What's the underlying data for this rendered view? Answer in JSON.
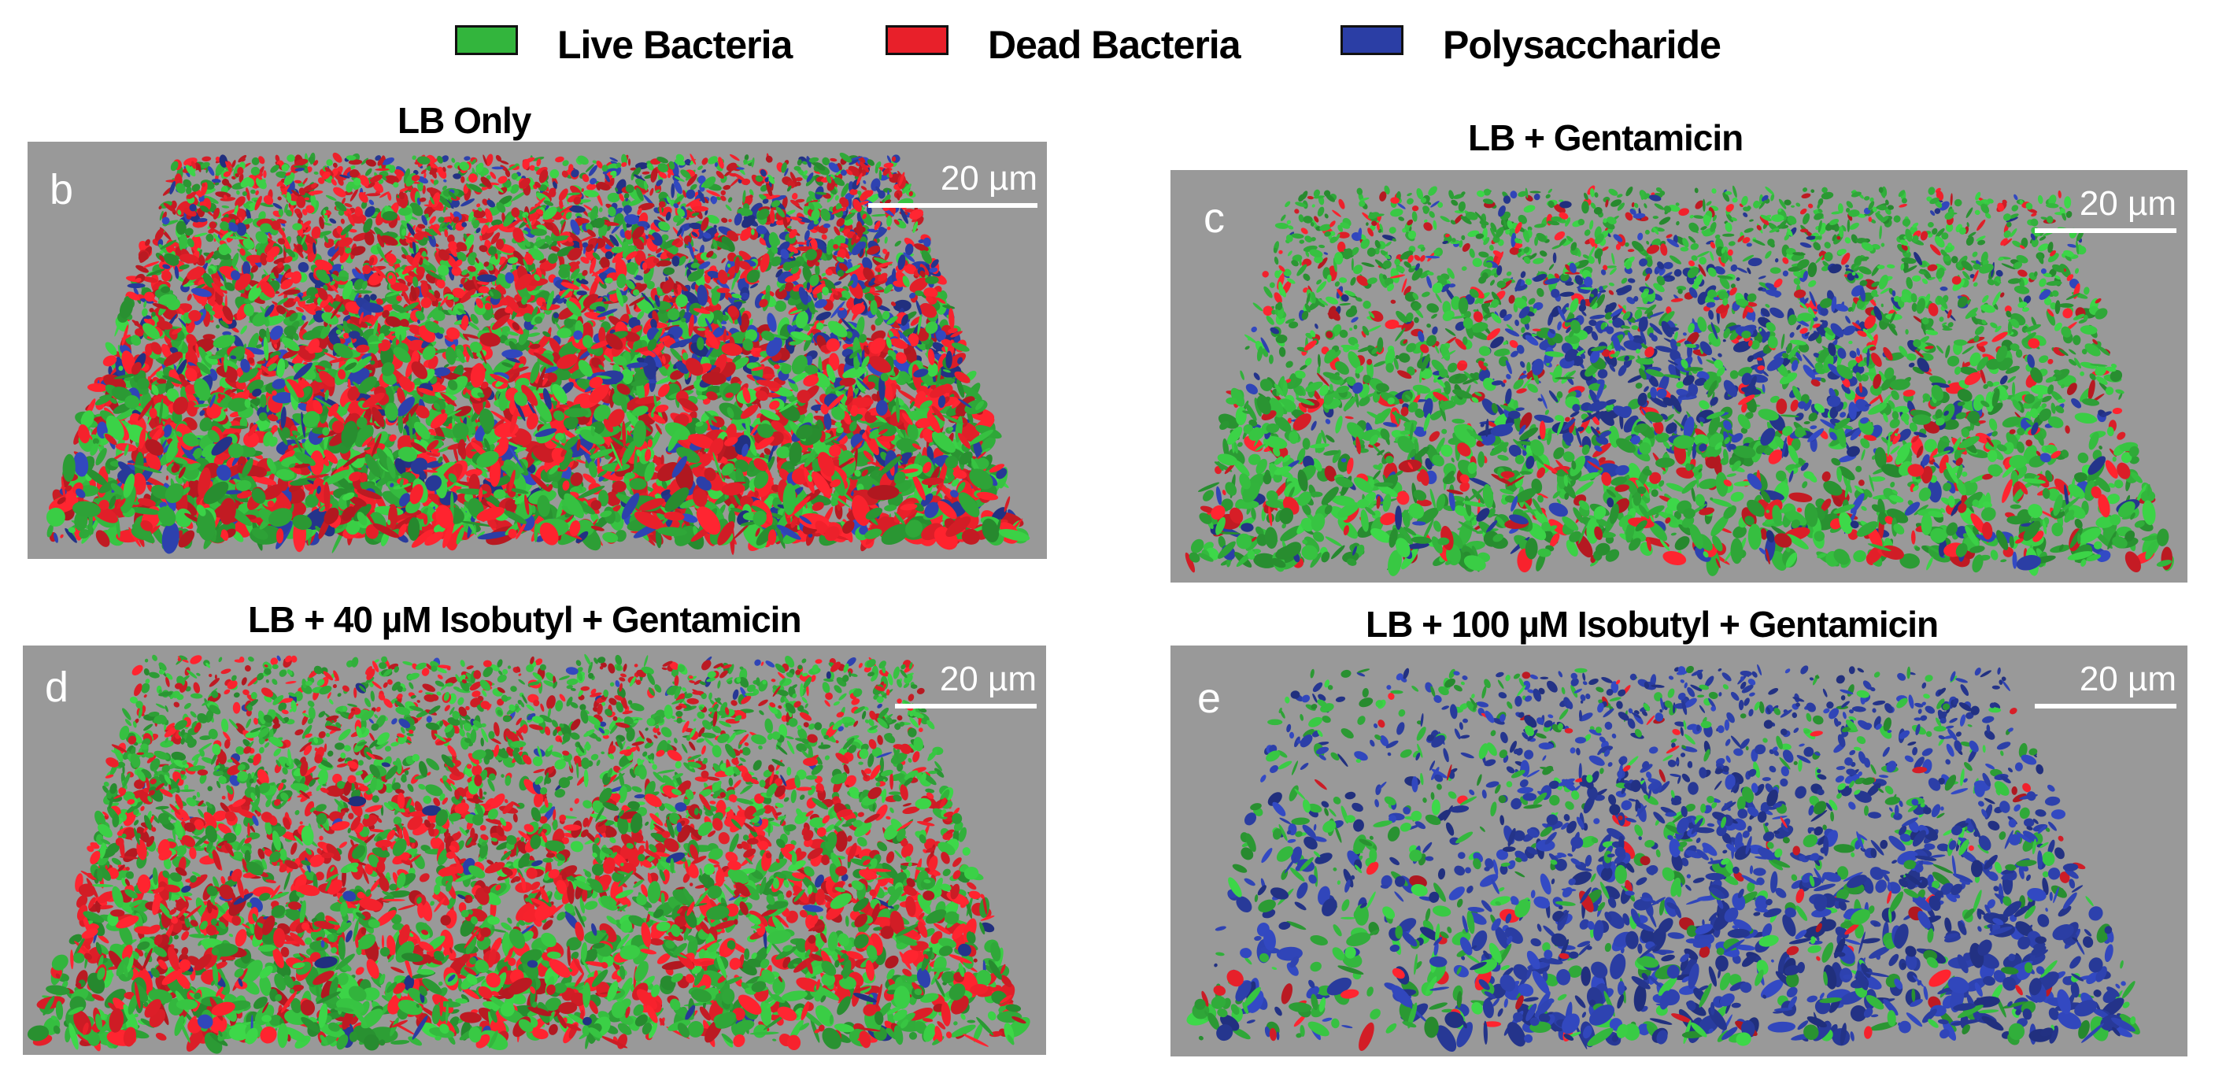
{
  "legend": {
    "items": [
      {
        "label": "Live Bacteria",
        "color": "#33b53d"
      },
      {
        "label": "Dead Bacteria",
        "color": "#e8202a"
      },
      {
        "label": "Polysaccharide",
        "color": "#2b3ea5"
      }
    ]
  },
  "panels": [
    {
      "title": "LB Only",
      "letter": "b",
      "scale": "20 µm"
    },
    {
      "title": "LB + Gentamicin",
      "letter": "c",
      "scale": "20 µm"
    },
    {
      "title": "LB + 40 µM Isobutyl + Gentamicin",
      "letter": "d",
      "scale": "20 µm"
    },
    {
      "title": "LB + 100 µM Isobutyl + Gentamicin",
      "letter": "e",
      "scale": "20 µm"
    }
  ],
  "colors": {
    "background": "#999999",
    "live": "#33b53d",
    "dead": "#e8202a",
    "polysaccharide": "#2b3ea5"
  }
}
